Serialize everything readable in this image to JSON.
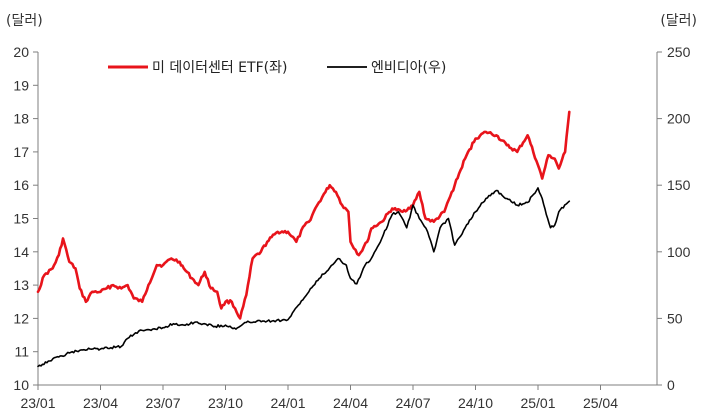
{
  "chart_data": {
    "type": "line",
    "left_unit": "(달러)",
    "right_unit": "(달러)",
    "y_left": {
      "min": 10,
      "max": 20,
      "ticks": [
        10,
        11,
        12,
        13,
        14,
        15,
        16,
        17,
        18,
        19,
        20
      ]
    },
    "y_right": {
      "min": 0,
      "max": 250,
      "ticks": [
        0,
        50,
        100,
        150,
        200,
        250
      ]
    },
    "x_ticks": [
      "23/01",
      "23/04",
      "23/07",
      "23/10",
      "24/01",
      "24/04",
      "24/07",
      "24/10",
      "25/01",
      "25/04"
    ],
    "legend_position": "top",
    "series": [
      {
        "name": "미 데이터센터 ETF(좌)",
        "axis": "left",
        "color": "#e8141b",
        "points": [
          [
            "23/01",
            12.8
          ],
          [
            "23/01.3",
            13.3
          ],
          [
            "23/01.7",
            13.5
          ],
          [
            "23/02",
            13.9
          ],
          [
            "23/02.2",
            14.4
          ],
          [
            "23/02.5",
            13.7
          ],
          [
            "23/02.8",
            13.5
          ],
          [
            "23/03",
            12.9
          ],
          [
            "23/03.3",
            12.5
          ],
          [
            "23/03.6",
            12.8
          ],
          [
            "23/04",
            12.8
          ],
          [
            "23/04.3",
            12.9
          ],
          [
            "23/04.6",
            13.0
          ],
          [
            "23/05",
            12.9
          ],
          [
            "23/05.3",
            13.0
          ],
          [
            "23/05.6",
            12.6
          ],
          [
            "23/06",
            12.5
          ],
          [
            "23/06.3",
            13.0
          ],
          [
            "23/06.7",
            13.6
          ],
          [
            "23/07",
            13.6
          ],
          [
            "23/07.4",
            13.8
          ],
          [
            "23/07.8",
            13.7
          ],
          [
            "23/08",
            13.5
          ],
          [
            "23/08.4",
            13.2
          ],
          [
            "23/08.7",
            13.0
          ],
          [
            "23/09",
            13.4
          ],
          [
            "23/09.3",
            12.9
          ],
          [
            "23/09.6",
            12.8
          ],
          [
            "23/09.8",
            12.3
          ],
          [
            "23/10",
            12.5
          ],
          [
            "23/10.3",
            12.5
          ],
          [
            "23/10.7",
            12.0
          ],
          [
            "23/11",
            12.7
          ],
          [
            "23/11.3",
            13.8
          ],
          [
            "23/11.7",
            14.0
          ],
          [
            "23/12",
            14.3
          ],
          [
            "23/12.5",
            14.6
          ],
          [
            "24/01",
            14.6
          ],
          [
            "24/01.4",
            14.3
          ],
          [
            "24/01.8",
            14.8
          ],
          [
            "24/02",
            14.9
          ],
          [
            "24/02.4",
            15.4
          ],
          [
            "24/02.8",
            15.8
          ],
          [
            "24/03",
            16.0
          ],
          [
            "24/03.3",
            15.8
          ],
          [
            "24/03.6",
            15.4
          ],
          [
            "24/03.9",
            15.2
          ],
          [
            "24/04",
            14.3
          ],
          [
            "24/04.4",
            13.9
          ],
          [
            "24/04.8",
            14.3
          ],
          [
            "24/05",
            14.7
          ],
          [
            "24/05.5",
            14.9
          ],
          [
            "24/06",
            15.3
          ],
          [
            "24/06.5",
            15.2
          ],
          [
            "24/07",
            15.4
          ],
          [
            "24/07.3",
            15.8
          ],
          [
            "24/07.6",
            15.0
          ],
          [
            "24/08",
            14.9
          ],
          [
            "24/08.5",
            15.2
          ],
          [
            "24/09",
            16.0
          ],
          [
            "24/09.5",
            16.8
          ],
          [
            "24/10",
            17.4
          ],
          [
            "24/10.5",
            17.6
          ],
          [
            "24/11",
            17.5
          ],
          [
            "24/11.5",
            17.2
          ],
          [
            "24/12",
            17.0
          ],
          [
            "24/12.5",
            17.5
          ],
          [
            "25/01",
            16.6
          ],
          [
            "25/01.2",
            16.2
          ],
          [
            "25/01.5",
            16.9
          ],
          [
            "25/01.8",
            16.8
          ],
          [
            "25/02",
            16.5
          ],
          [
            "25/02.3",
            17.0
          ],
          [
            "25/02.5",
            18.2
          ]
        ]
      },
      {
        "name": "엔비디아(우)",
        "axis": "right",
        "color": "#000000",
        "points": [
          [
            "23/01",
            14
          ],
          [
            "23/01.5",
            18
          ],
          [
            "23/02",
            21
          ],
          [
            "23/02.5",
            24
          ],
          [
            "23/03",
            26
          ],
          [
            "23/03.5",
            27
          ],
          [
            "23/04",
            27
          ],
          [
            "23/04.5",
            28
          ],
          [
            "23/05",
            29
          ],
          [
            "23/05.3",
            35
          ],
          [
            "23/05.6",
            38
          ],
          [
            "23/06",
            41
          ],
          [
            "23/06.5",
            42
          ],
          [
            "23/07",
            43
          ],
          [
            "23/07.5",
            46
          ],
          [
            "23/08",
            45
          ],
          [
            "23/08.5",
            47
          ],
          [
            "23/09",
            46
          ],
          [
            "23/09.5",
            44
          ],
          [
            "23/10",
            45
          ],
          [
            "23/10.5",
            42
          ],
          [
            "23/11",
            47
          ],
          [
            "23/11.5",
            48
          ],
          [
            "23/12",
            48
          ],
          [
            "24/01",
            49
          ],
          [
            "24/01.5",
            60
          ],
          [
            "24/02",
            70
          ],
          [
            "24/02.5",
            80
          ],
          [
            "24/03",
            88
          ],
          [
            "24/03.4",
            95
          ],
          [
            "24/03.8",
            90
          ],
          [
            "24/04",
            80
          ],
          [
            "24/04.3",
            76
          ],
          [
            "24/04.7",
            90
          ],
          [
            "24/05",
            95
          ],
          [
            "24/05.5",
            110
          ],
          [
            "24/06",
            128
          ],
          [
            "24/06.3",
            130
          ],
          [
            "24/06.7",
            118
          ],
          [
            "24/07",
            135
          ],
          [
            "24/07.3",
            125
          ],
          [
            "24/07.7",
            115
          ],
          [
            "24/08",
            100
          ],
          [
            "24/08.3",
            118
          ],
          [
            "24/08.7",
            125
          ],
          [
            "24/09",
            105
          ],
          [
            "24/09.5",
            118
          ],
          [
            "24/10",
            130
          ],
          [
            "24/10.5",
            140
          ],
          [
            "24/11",
            146
          ],
          [
            "24/11.5",
            140
          ],
          [
            "24/12",
            135
          ],
          [
            "24/12.5",
            137
          ],
          [
            "25/01",
            148
          ],
          [
            "25/01.2",
            140
          ],
          [
            "25/01.4",
            128
          ],
          [
            "25/01.6",
            118
          ],
          [
            "25/01.8",
            120
          ],
          [
            "25/02",
            130
          ],
          [
            "25/02.5",
            138
          ]
        ]
      }
    ]
  }
}
